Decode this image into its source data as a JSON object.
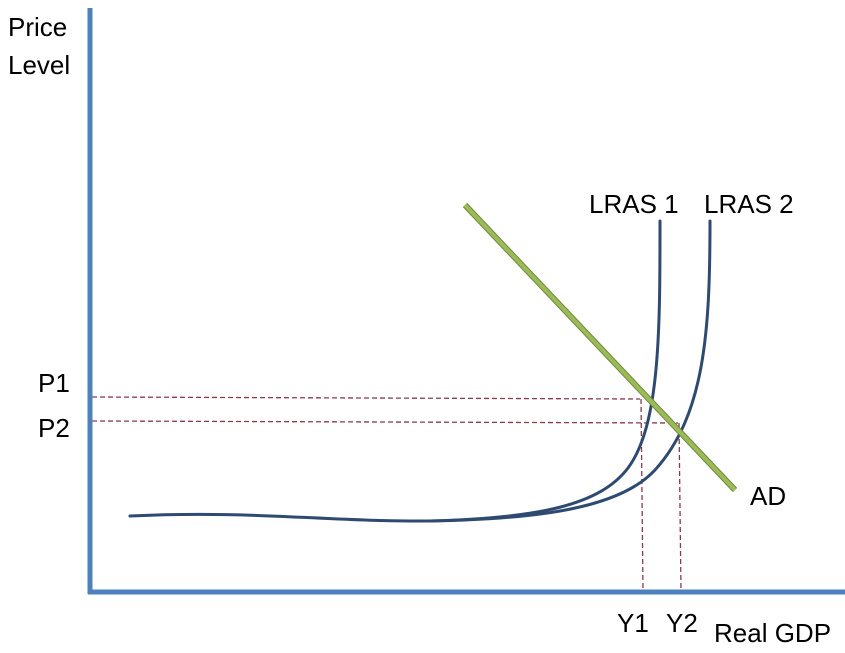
{
  "axes": {
    "y_label_line1": "Price",
    "y_label_line2": "Level",
    "x_label": "Real GDP",
    "color": "#4f81bd"
  },
  "curves": {
    "lras1": {
      "label": "LRAS 1",
      "color": "#2f4a70"
    },
    "lras2": {
      "label": "LRAS 2",
      "color": "#2f4a70"
    },
    "ad": {
      "label": "AD",
      "color": "#9bbb59",
      "outline": "#6f8a3a"
    }
  },
  "levels": {
    "p1": "P1",
    "p2": "P2",
    "y1": "Y1",
    "y2": "Y2"
  },
  "guide_color": "#8b3a4a"
}
